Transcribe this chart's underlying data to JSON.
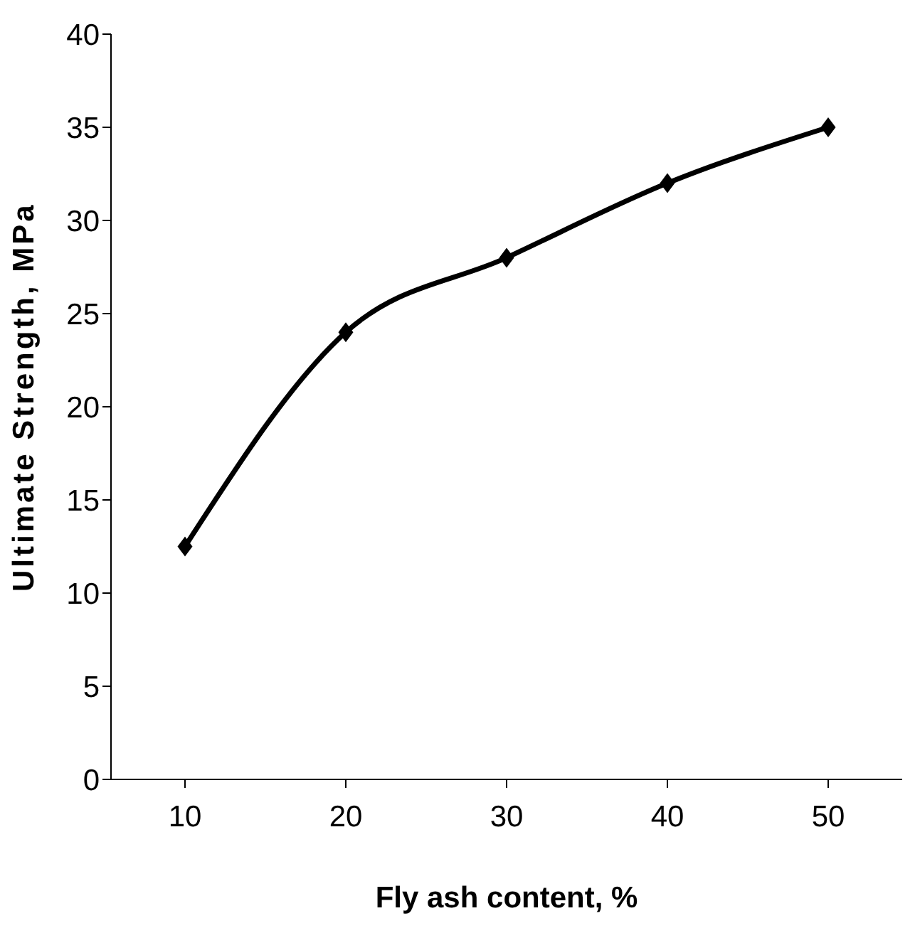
{
  "chart_data": {
    "type": "line",
    "xlabel": "Fly ash content, %",
    "ylabel": "Ultimate Strength, MPa",
    "categories": [
      "10",
      "20",
      "30",
      "40",
      "50"
    ],
    "series": [
      {
        "color": "#000000",
        "values": [
          12.5,
          24,
          28,
          32,
          35
        ]
      }
    ],
    "ylim": [
      0,
      40
    ],
    "yticks": [
      0,
      5,
      10,
      15,
      20,
      25,
      30,
      35,
      40
    ],
    "grid": false,
    "legend": false,
    "marker": "diamond",
    "line_style": "solid"
  }
}
